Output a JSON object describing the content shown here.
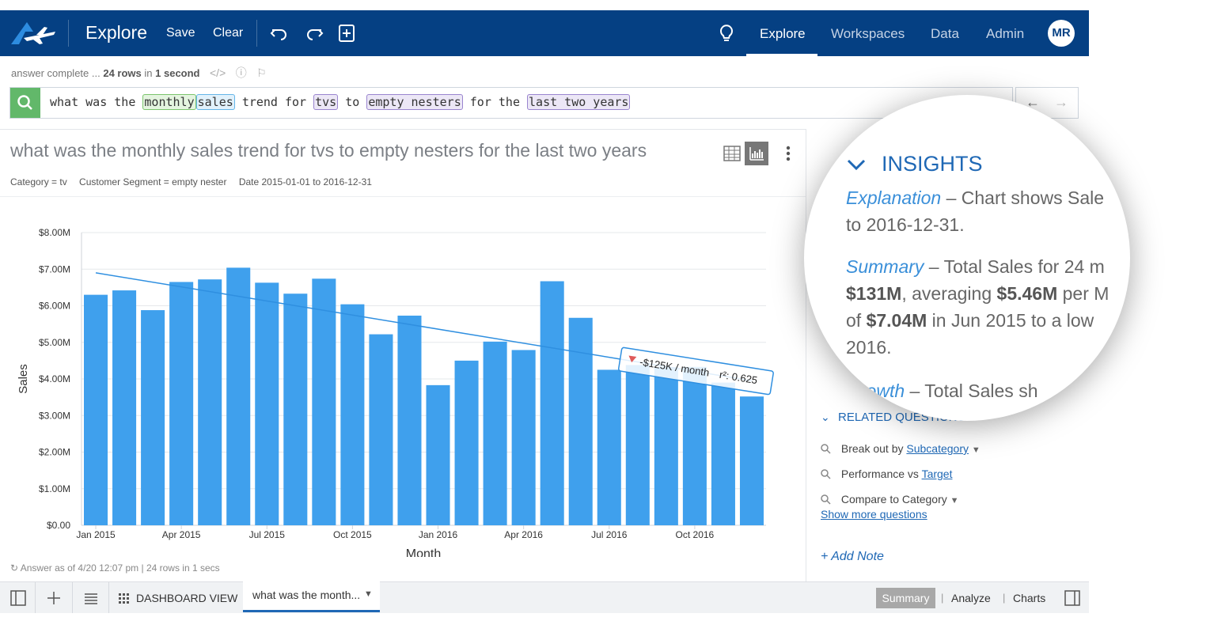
{
  "topbar": {
    "logo_icon": "airplane-logo-icon",
    "app_title": "Explore",
    "save_label": "Save",
    "clear_label": "Clear",
    "nav": [
      "Explore",
      "Workspaces",
      "Data",
      "Admin"
    ],
    "avatar": "MR"
  },
  "status": {
    "prefix": "answer complete ...",
    "rows": "24 rows",
    "mid": "in",
    "time": "1 second"
  },
  "search": {
    "t1": "what was the",
    "monthly": "monthly",
    "sales": "sales",
    "t2": "trend for",
    "tvs": "tvs",
    "t3": "to",
    "empty_nesters": "empty nesters",
    "t4": "for the",
    "last_two_years": "last two years"
  },
  "answer": {
    "title": "what was the monthly sales trend for tvs to empty nesters for the last two years",
    "filters": [
      "Category = tv",
      "Customer Segment = empty nester",
      "Date 2015-01-01 to 2016-12-31"
    ],
    "footer": "Answer as of 4/20 12:07 pm | 24 rows in 1 secs"
  },
  "chart_data": {
    "type": "bar",
    "categories": [
      "Jan 2015",
      "Feb 2015",
      "Mar 2015",
      "Apr 2015",
      "May 2015",
      "Jun 2015",
      "Jul 2015",
      "Aug 2015",
      "Sep 2015",
      "Oct 2015",
      "Nov 2015",
      "Dec 2015",
      "Jan 2016",
      "Feb 2016",
      "Mar 2016",
      "Apr 2016",
      "May 2016",
      "Jun 2016",
      "Jul 2016",
      "Aug 2016",
      "Sep 2016",
      "Oct 2016",
      "Nov 2016",
      "Dec 2016"
    ],
    "values": [
      6.3,
      6.42,
      5.88,
      6.65,
      6.72,
      7.04,
      6.63,
      6.33,
      6.74,
      6.04,
      5.22,
      5.73,
      3.83,
      4.5,
      5.02,
      4.79,
      6.67,
      5.67,
      4.25,
      4.38,
      4.32,
      4.33,
      3.9,
      3.52
    ],
    "value_unit": "$M",
    "xlabel": "Month",
    "ylabel": "Sales",
    "ylim": [
      0,
      8
    ],
    "y_ticks": [
      "$0.00",
      "$1.00M",
      "$2.00M",
      "$3.00M",
      "$4.00M",
      "$5.00M",
      "$6.00M",
      "$7.00M",
      "$8.00M"
    ],
    "x_ticks": [
      "Jan 2015",
      "Apr 2015",
      "Jul 2015",
      "Oct 2015",
      "Jan 2016",
      "Apr 2016",
      "Jul 2016",
      "Oct 2016"
    ],
    "trend": {
      "start": 6.9,
      "end": 3.95,
      "label": "-$125K / month",
      "r2": "r²: 0.625"
    },
    "bar_color": "#3fa0ed",
    "grid": true
  },
  "related": {
    "heading": "RELATED QUESTIONS",
    "items": [
      {
        "text": "Break out by ",
        "link": "Subcategory"
      },
      {
        "text": "Performance vs ",
        "link": "Target"
      },
      {
        "text": "Compare to Category",
        "link": ""
      }
    ],
    "more": "Show more questions",
    "note": "+ Add Note"
  },
  "magnifier": {
    "heading": "INSIGHTS",
    "l1a": "Explanation",
    "l1b": " – Chart shows Sale",
    "l2": "to 2016-12-31.",
    "l3a": "Summary",
    "l3b": " – Total Sales for 24 m",
    "l4a": "$131M",
    "l4b": ", averaging ",
    "l4c": "$5.46M",
    "l4d": " per M",
    "l5a": "of ",
    "l5b": "$7.04M",
    "l5c": " in Jun 2015 to a low",
    "l6": "2016.",
    "l7a": "Growth",
    "l7b": " – Total Sales sh"
  },
  "bottombar": {
    "dashboard": "DASHBOARD VIEW",
    "tab": "what was the month...",
    "summary": "Summary",
    "analyze": "Analyze",
    "charts": "Charts"
  }
}
